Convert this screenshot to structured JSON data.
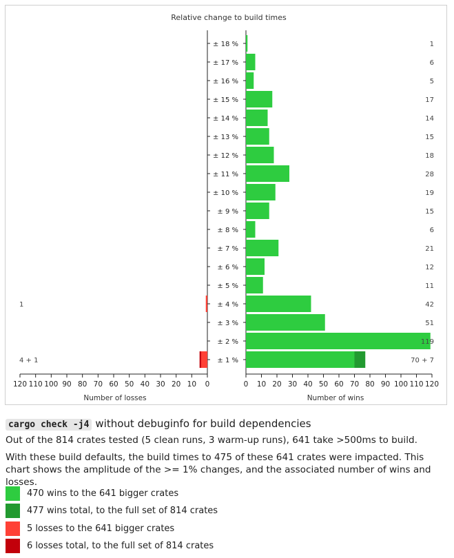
{
  "chart_data": {
    "type": "bar",
    "title": "Relative change to build times",
    "categories": [
      "± 18 %",
      "± 17 %",
      "± 16 %",
      "± 15 %",
      "± 14 %",
      "± 13 %",
      "± 12 %",
      "± 11 %",
      "± 10 %",
      "± 9 %",
      "± 8 %",
      "± 7 %",
      "± 6 %",
      "± 5 %",
      "± 4 %",
      "± 3 %",
      "± 2 %",
      "± 1 %"
    ],
    "wins": {
      "xlabel": "Number of wins",
      "xlim": [
        0,
        120
      ],
      "ticks": [
        0,
        10,
        20,
        30,
        40,
        50,
        60,
        70,
        80,
        90,
        100,
        110,
        120
      ],
      "series": [
        {
          "name": "470 wins to the 641 bigger crates",
          "values": [
            1,
            6,
            5,
            17,
            14,
            15,
            18,
            28,
            19,
            15,
            6,
            21,
            12,
            11,
            42,
            51,
            119,
            70
          ]
        },
        {
          "name": "477 wins total, to the full set of 814 crates",
          "values": [
            0,
            0,
            0,
            0,
            0,
            0,
            0,
            0,
            0,
            0,
            0,
            0,
            0,
            0,
            0,
            0,
            0,
            7
          ]
        }
      ],
      "value_labels": [
        "1",
        "6",
        "5",
        "17",
        "14",
        "15",
        "18",
        "28",
        "19",
        "15",
        "6",
        "21",
        "12",
        "11",
        "42",
        "51",
        "119",
        "70 + 7"
      ]
    },
    "losses": {
      "xlabel": "Number of losses",
      "xlim": [
        0,
        120
      ],
      "ticks": [
        0,
        10,
        20,
        30,
        40,
        50,
        60,
        70,
        80,
        90,
        100,
        110,
        120
      ],
      "series": [
        {
          "name": "5 losses to the 641 bigger crates",
          "values": [
            0,
            0,
            0,
            0,
            0,
            0,
            0,
            0,
            0,
            0,
            0,
            0,
            0,
            0,
            1,
            0,
            0,
            4
          ]
        },
        {
          "name": "6 losses total, to the full set of 814 crates",
          "values": [
            0,
            0,
            0,
            0,
            0,
            0,
            0,
            0,
            0,
            0,
            0,
            0,
            0,
            0,
            0,
            0,
            0,
            1
          ]
        }
      ],
      "value_labels": [
        "",
        "",
        "",
        "",
        "",
        "",
        "",
        "",
        "",
        "",
        "",
        "",
        "",
        "",
        "1",
        "",
        "",
        "4 + 1"
      ]
    },
    "colors": {
      "win": "#2ecc40",
      "win_total": "#229a30",
      "loss": "#ff4136",
      "loss_total": "#c2000b"
    }
  },
  "description": {
    "command": "cargo check -j4",
    "heading_rest": "without debuginfo for build dependencies",
    "paragraph1": "Out of the 814 crates tested (5 clean runs, 3 warm-up runs), 641 take >500ms to build.",
    "paragraph2": "With these build defaults, the build times to 475 of these 641 crates were impacted. This chart shows the amplitude of the >= 1% changes, and the associated number of wins and losses."
  },
  "legend": [
    {
      "label": "470 wins to the 641 bigger crates",
      "color": "#2ecc40"
    },
    {
      "label": "477 wins total, to the full set of 814 crates",
      "color": "#229a30"
    },
    {
      "label": "5 losses to the 641 bigger crates",
      "color": "#ff4136"
    },
    {
      "label": "6 losses total, to the full set of 814 crates",
      "color": "#c2000b"
    }
  ]
}
